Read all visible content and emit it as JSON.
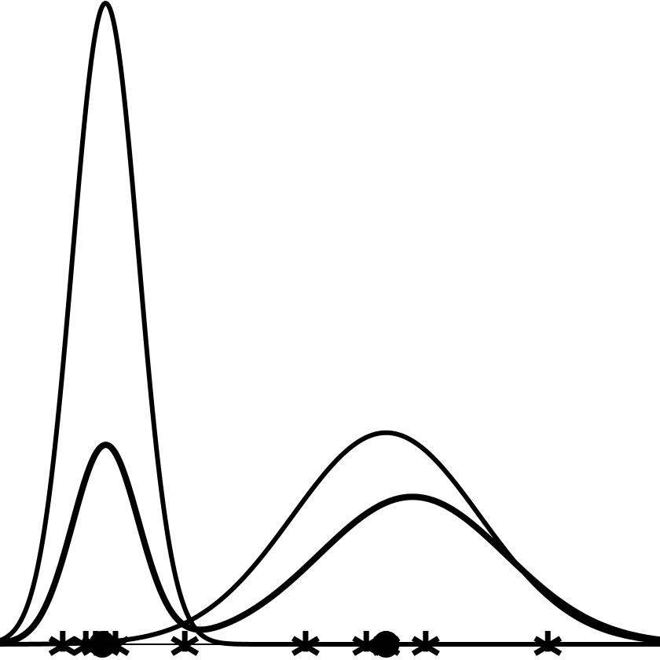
{
  "chart_data": {
    "type": "line",
    "title": "",
    "xlabel": "",
    "ylabel": "",
    "xlim": [
      0,
      1
    ],
    "ylim": [
      0,
      1
    ],
    "grid": false,
    "legend": "none",
    "colors": {
      "line": "#000000",
      "background": "#ffffff"
    },
    "series": [
      {
        "kind": "gaussian",
        "mean": 0.16,
        "sd": 0.05,
        "peak": 1.0,
        "weight": "thin"
      },
      {
        "kind": "gaussian",
        "mean": 0.585,
        "sd": 0.142,
        "peak": 0.33,
        "weight": "thin"
      },
      {
        "kind": "mixture",
        "weight": "thick",
        "components": [
          {
            "mean": 0.16,
            "sd": 0.05,
            "peak": 0.31
          },
          {
            "mean": 0.625,
            "sd": 0.142,
            "peak": 0.23
          }
        ]
      }
    ],
    "samples": [
      0.095,
      0.13,
      0.145,
      0.16,
      0.175,
      0.28,
      0.463,
      0.555,
      0.585,
      0.645,
      0.83
    ],
    "centers": [
      0.155,
      0.585
    ]
  }
}
